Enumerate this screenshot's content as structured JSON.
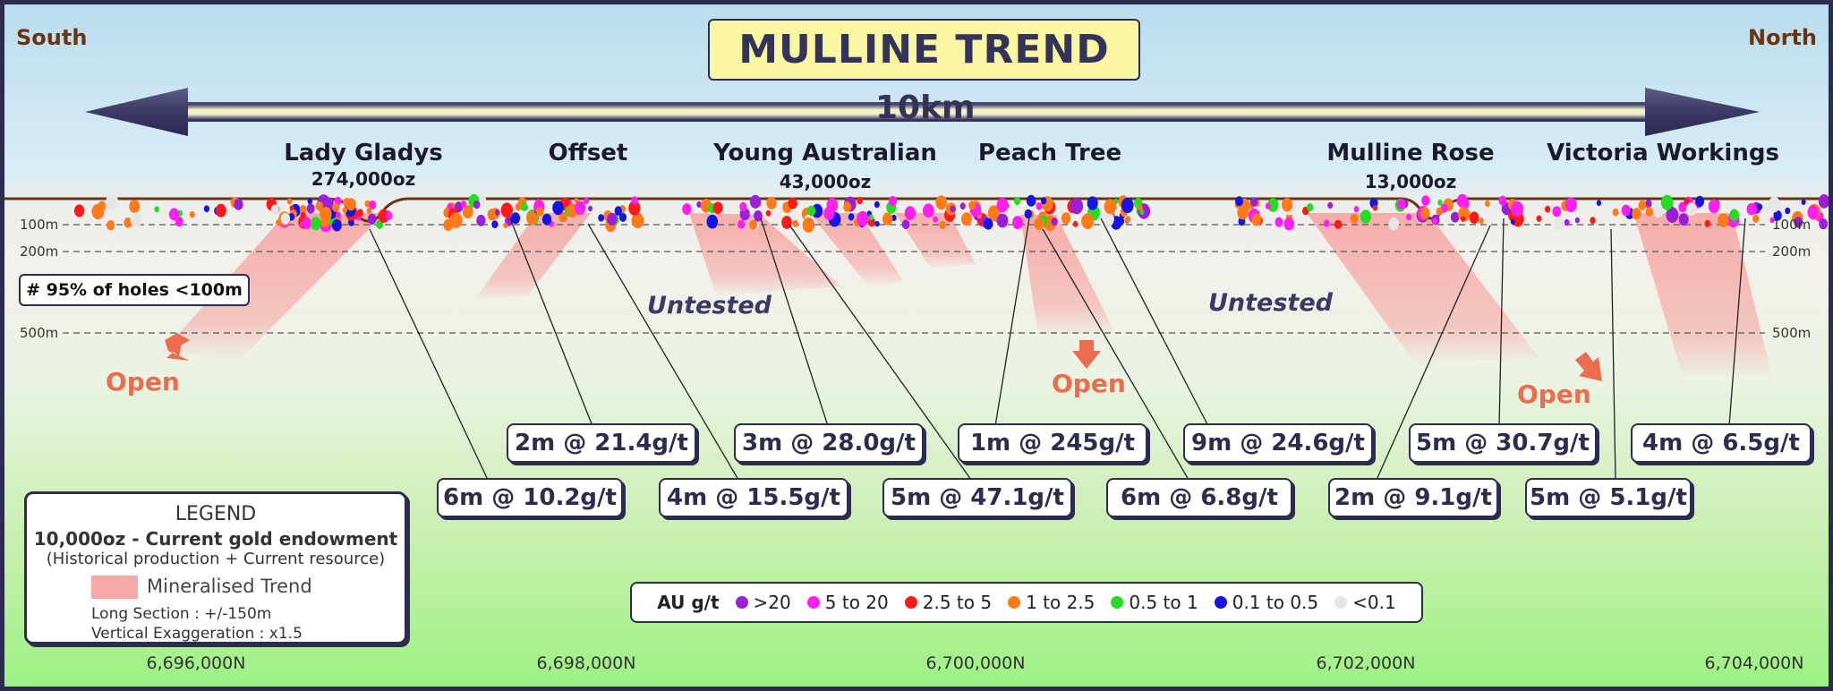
{
  "title": "MULLINE TREND",
  "direction_left": "South",
  "direction_right": "North",
  "distance_label": "10km",
  "deposits": [
    {
      "name": "Lady Gladys",
      "endowment": "274,000oz"
    },
    {
      "name": "Offset",
      "endowment": ""
    },
    {
      "name": "Young Australian",
      "endowment": "43,000oz"
    },
    {
      "name": "Peach Tree",
      "endowment": ""
    },
    {
      "name": "Mulline Rose",
      "endowment": "13,000oz"
    },
    {
      "name": "Victoria Workings",
      "endowment": ""
    }
  ],
  "depth_labels": {
    "d100": "100m",
    "d200": "200m",
    "d500": "500m"
  },
  "note": "# 95% of holes <100m",
  "untested_label": "Untested",
  "open_label": "Open",
  "intercepts": [
    "2m @ 21.4g/t",
    "3m @ 28.0g/t",
    "1m @ 245g/t",
    "9m @ 24.6g/t",
    "5m @ 30.7g/t",
    "4m @ 6.5g/t",
    "6m @ 10.2g/t",
    "4m @ 15.5g/t",
    "5m @ 47.1g/t",
    "6m @ 6.8g/t",
    "2m @ 9.1g/t",
    "5m @ 5.1g/t"
  ],
  "legend": {
    "title": "LEGEND",
    "endowment_line": "10,000oz - Current gold endowment",
    "historical_line": "(Historical production + Current resource)",
    "trend_label": "Mineralised Trend",
    "long_section": "Long Section : +/-150m",
    "vertical_exaggeration": "Vertical Exaggeration : x1.5"
  },
  "au_legend": {
    "title": "AU g/t",
    "bins": [
      {
        "label": ">20",
        "color": "#9b1fd6"
      },
      {
        "label": "5 to 20",
        "color": "#ff1ff0"
      },
      {
        "label": "2.5 to 5",
        "color": "#ff1a1a"
      },
      {
        "label": "1 to 2.5",
        "color": "#ff7a1a"
      },
      {
        "label": "0.5 to 1",
        "color": "#22dd22"
      },
      {
        "label": "0.1 to 0.5",
        "color": "#1515e0"
      },
      {
        "label": "<0.1",
        "color": "#e6e6e6"
      }
    ]
  },
  "northings": [
    "6,696,000N",
    "6,698,000N",
    "6,700,000N",
    "6,702,000N",
    "6,704,000N"
  ],
  "colors": {
    "frame": "#2c2c4e",
    "title_bg": "#fbf6a2",
    "trend": "#f6a9a6",
    "open": "#ec6c4f",
    "arrow": "#3b3a66"
  }
}
